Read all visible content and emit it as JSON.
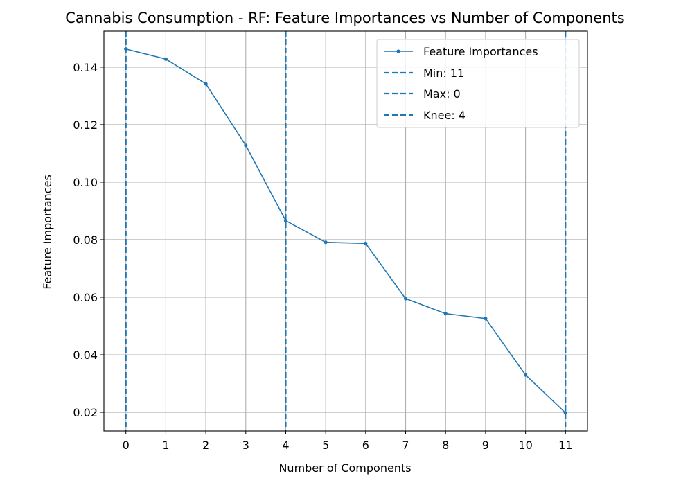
{
  "chart_data": {
    "type": "line",
    "title": "Cannabis Consumption - RF: Feature Importances vs Number of Components",
    "xlabel": "Number of Components",
    "ylabel": "Feature Importances",
    "x": [
      0,
      1,
      2,
      3,
      4,
      5,
      6,
      7,
      8,
      9,
      10,
      11
    ],
    "series": [
      {
        "name": "Feature Importances",
        "values": [
          0.1463,
          0.1428,
          0.1342,
          0.1128,
          0.0866,
          0.0791,
          0.0787,
          0.0595,
          0.0543,
          0.0526,
          0.033,
          0.0198
        ],
        "color": "#1f77b4"
      }
    ],
    "vlines": [
      {
        "label": "Min: 11",
        "x": 11,
        "color": "#1f77b4"
      },
      {
        "label": "Max: 0",
        "x": 0,
        "color": "#1f77b4"
      },
      {
        "label": "Knee: 4",
        "x": 4,
        "color": "#1f77b4"
      }
    ],
    "xticks": [
      "0",
      "1",
      "2",
      "3",
      "4",
      "5",
      "6",
      "7",
      "8",
      "9",
      "10",
      "11"
    ],
    "yticks": [
      0.02,
      0.04,
      0.06,
      0.08,
      0.1,
      0.12,
      0.14
    ],
    "ytick_labels": [
      "0.02",
      "0.04",
      "0.06",
      "0.08",
      "0.10",
      "0.12",
      "0.14"
    ],
    "xlim": [
      -0.55,
      11.55
    ],
    "ylim": [
      0.0135,
      0.1525
    ],
    "grid": true,
    "legend_position": "upper right"
  }
}
